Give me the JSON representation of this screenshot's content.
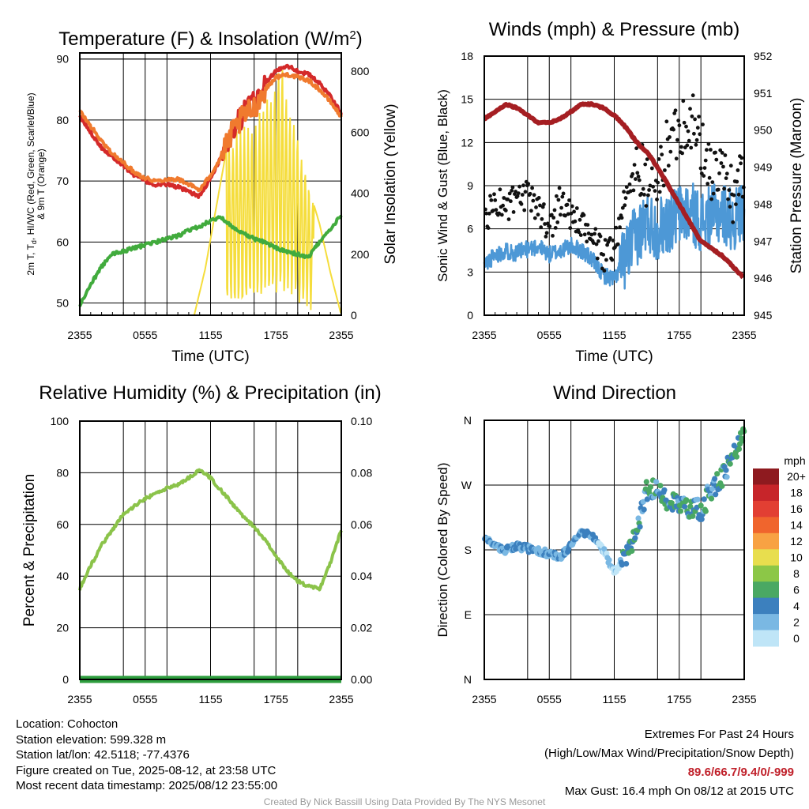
{
  "chart_data": [
    {
      "type": "line",
      "title": "Temperature (F) & Insolation (W/m²)",
      "xlabel": "Time (UTC)",
      "ylabel": "2m T, Td, HI/WC (Red, Green, Scarlet/Blue) & 9m T (Orange)",
      "y2label": "Solar Insolation (Yellow)",
      "x_ticks": [
        "2355",
        "0555",
        "1155",
        "1755",
        "2355"
      ],
      "ylim": [
        48,
        91
      ],
      "y_ticks": [
        50,
        60,
        70,
        80,
        90
      ],
      "y2lim": [
        0,
        860
      ],
      "y2_ticks": [
        0,
        200,
        400,
        600,
        800
      ],
      "series": [
        {
          "color": "#d42a2a",
          "x_hours": [
            0,
            1,
            2,
            3,
            4,
            5,
            6,
            7,
            8,
            9,
            10,
            11,
            12,
            13,
            14,
            15,
            16,
            17,
            18,
            19,
            20,
            21,
            22,
            23,
            24
          ],
          "values": [
            80.5,
            78,
            75.5,
            74,
            72.5,
            71,
            70,
            69.3,
            69.5,
            69,
            68.2,
            67.5,
            70.5,
            74,
            78,
            81,
            83,
            86,
            88,
            89,
            88,
            87.5,
            86,
            84,
            81
          ]
        },
        {
          "color": "#f07a2e",
          "x_hours": [
            0,
            1,
            2,
            3,
            4,
            5,
            6,
            7,
            8,
            9,
            10,
            11,
            12,
            13,
            14,
            15,
            16,
            17,
            18,
            19,
            20,
            21,
            22,
            23,
            24
          ],
          "values": [
            81.5,
            79,
            76.5,
            74.5,
            73,
            71.5,
            70.5,
            70,
            70.3,
            70.3,
            69.5,
            68.5,
            71,
            74,
            78,
            80.5,
            82,
            85,
            87,
            87.5,
            87,
            86.5,
            85,
            83,
            80.5
          ]
        },
        {
          "color": "#41ab3d",
          "x_hours": [
            0,
            1,
            2,
            3,
            4,
            5,
            6,
            7,
            8,
            9,
            10,
            11,
            12,
            13,
            14,
            15,
            16,
            17,
            18,
            19,
            20,
            21,
            22,
            23,
            24
          ],
          "values": [
            49.5,
            53,
            56,
            58,
            58.5,
            59,
            59.5,
            60,
            60.5,
            61,
            62,
            62.5,
            63.5,
            64,
            62.5,
            61.5,
            60.5,
            60,
            59,
            58.5,
            58,
            57.5,
            60,
            62,
            64.5
          ]
        }
      ],
      "insolation": {
        "color": "#f5dd3c",
        "x_hours": [
          0,
          6,
          10.5,
          11.5,
          12.5,
          13.5,
          14.5,
          16,
          17,
          18,
          18.5,
          19,
          20,
          21,
          22,
          23,
          24
        ],
        "values": [
          0,
          0,
          0,
          150,
          350,
          550,
          580,
          620,
          700,
          760,
          820,
          700,
          560,
          420,
          300,
          140,
          0
        ]
      }
    },
    {
      "type": "line",
      "title": "Winds (mph) & Pressure (mb)",
      "xlabel": "Time (UTC)",
      "ylabel": "Sonic Wind & Gust (Blue, Black)",
      "y2label": "Station Pressure (Maroon)",
      "x_ticks": [
        "2355",
        "0555",
        "1155",
        "1755",
        "2355"
      ],
      "ylim": [
        0,
        18
      ],
      "y_ticks": [
        0,
        3,
        6,
        9,
        12,
        15,
        18
      ],
      "y2lim": [
        945,
        952
      ],
      "y2_ticks": [
        945,
        946,
        947,
        948,
        949,
        950,
        951,
        952
      ],
      "series": [
        {
          "name": "Sonic Wind",
          "color": "#4d98d6",
          "x_hours": [
            0,
            1,
            2,
            3,
            4,
            5,
            6,
            7,
            8,
            9,
            10,
            11,
            12,
            13,
            14,
            15,
            16,
            17,
            18,
            19,
            20,
            21,
            22,
            23,
            24
          ],
          "values": [
            3.5,
            4.2,
            4.5,
            4.3,
            4.6,
            4.8,
            4.2,
            4.5,
            4.8,
            4.5,
            3.8,
            2.8,
            2.5,
            4,
            5.5,
            6.5,
            6,
            6.5,
            7,
            7.2,
            6.5,
            6.8,
            7.2,
            6.5,
            7.5
          ]
        },
        {
          "name": "Gust",
          "color": "#111111",
          "x_hours": [
            0,
            1,
            2,
            3,
            4,
            5,
            6,
            7,
            8,
            9,
            10,
            11,
            12,
            13,
            14,
            15,
            16,
            17,
            18,
            19,
            20,
            21,
            22,
            23,
            24
          ],
          "values": [
            6.5,
            8,
            7.5,
            8,
            8.2,
            7.5,
            6,
            8,
            7,
            6,
            5.5,
            4,
            5,
            8,
            10,
            9.5,
            9,
            12,
            13,
            14,
            11.5,
            10,
            9.5,
            8.5,
            10
          ]
        },
        {
          "name": "Pressure",
          "color": "#a51e22",
          "axis": "y2",
          "x_hours": [
            0,
            1,
            2,
            3,
            4,
            5,
            6,
            7,
            8,
            9,
            10,
            11,
            12,
            13,
            14,
            15,
            16,
            17,
            18,
            19,
            20,
            21,
            22,
            23,
            24
          ],
          "values": [
            950.3,
            950.5,
            950.7,
            950.6,
            950.4,
            950.2,
            950.2,
            950.3,
            950.5,
            950.7,
            950.7,
            950.6,
            950.4,
            950.1,
            949.7,
            949.4,
            949,
            948.5,
            948,
            947.5,
            947,
            946.8,
            946.6,
            946.3,
            946
          ]
        }
      ]
    },
    {
      "type": "line",
      "title": "Relative Humidity (%) & Precipitation (in)",
      "ylabel": "Percent & Precipitation",
      "x_ticks": [
        "2355",
        "0555",
        "1155",
        "1755",
        "2355"
      ],
      "ylim": [
        0,
        100
      ],
      "y_ticks": [
        0,
        20,
        40,
        60,
        80,
        100
      ],
      "y2lim": [
        0,
        0.1
      ],
      "y2_ticks": [
        "0.00",
        "0.02",
        "0.04",
        "0.06",
        "0.08",
        "0.10"
      ],
      "series": [
        {
          "name": "RH",
          "color": "#8bc34a",
          "x_hours": [
            0,
            1,
            2,
            3,
            4,
            5,
            6,
            7,
            8,
            9,
            10,
            11,
            12,
            13,
            14,
            15,
            16,
            17,
            18,
            19,
            20,
            21,
            22,
            23,
            24
          ],
          "values": [
            35,
            44,
            52,
            58,
            64,
            67,
            70,
            72,
            74,
            75.5,
            78,
            81,
            78,
            73,
            68,
            63,
            59,
            54,
            48,
            42,
            38,
            36,
            35,
            45,
            58
          ]
        },
        {
          "name": "Precipitation",
          "color": "#2e9e3e",
          "axis": "y2",
          "x_hours": [
            0,
            24
          ],
          "values": [
            0,
            0
          ]
        }
      ]
    },
    {
      "type": "scatter",
      "title": "Wind Direction",
      "ylabel": "Direction (Colored By Speed)",
      "x_ticks": [
        "2355",
        "0555",
        "1155",
        "1755",
        "2355"
      ],
      "y_ticks": [
        "N",
        "E",
        "S",
        "W",
        "N"
      ],
      "ylim": [
        0,
        360
      ],
      "x_hours": [
        0,
        1,
        2,
        3,
        4,
        5,
        6,
        7,
        8,
        9,
        10,
        11,
        12,
        13,
        14,
        15,
        16,
        17,
        18,
        19,
        20,
        21,
        22,
        23,
        24
      ],
      "values": [
        195,
        185,
        180,
        185,
        182,
        178,
        175,
        170,
        185,
        205,
        200,
        180,
        150,
        170,
        200,
        265,
        260,
        250,
        245,
        240,
        235,
        265,
        280,
        315,
        340
      ],
      "colorbar": {
        "unit": "mph",
        "labels": [
          "20+",
          "18",
          "16",
          "14",
          "12",
          "10",
          "8",
          "6",
          "4",
          "2",
          "0"
        ],
        "colors": [
          "#8e1a1f",
          "#c7252a",
          "#e23f33",
          "#f0652d",
          "#f8a243",
          "#e8de4e",
          "#8cc747",
          "#4aa863",
          "#3c80be",
          "#7ab8e3",
          "#bfe5f7"
        ]
      }
    }
  ],
  "footer": {
    "location": "Location: Cohocton",
    "elevation": "Station elevation: 599.328 m",
    "latlon": "Station lat/lon: 42.5118; -77.4376",
    "created": "Figure created on Tue, 2025-08-12, at 23:58 UTC",
    "recent": "Most recent data timestamp: 2025/08/12 23:55:00",
    "extremes_title": "Extremes For Past 24 Hours",
    "extremes_desc": "(High/Low/Max Wind/Precipitation/Snow Depth)",
    "extremes_values": "89.6/66.7/9.4/0/-999",
    "max_gust": "Max Gust: 16.4 mph On 08/12 at 2015 UTC",
    "credit": "Created By Nick Bassill Using Data Provided By The NYS Mesonet"
  }
}
